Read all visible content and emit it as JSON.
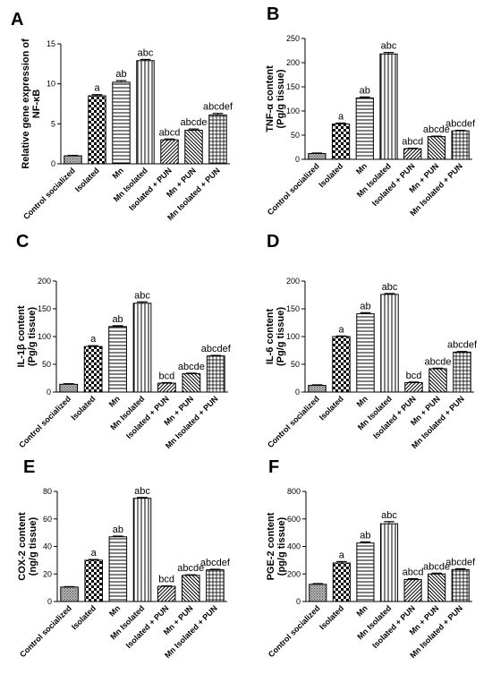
{
  "chart_data": [
    {
      "type": "bar",
      "panel": "A",
      "ylabel_lines": [
        "Relative gene expression of",
        "NF-κB"
      ],
      "categories": [
        "Control socialized",
        "Isolated",
        "Mn",
        "Mn Isolated",
        "Isolated + PUN",
        "Mn + PUN",
        "Mn Isolated + PUN"
      ],
      "values": [
        1.0,
        8.5,
        10.2,
        12.9,
        3.0,
        4.2,
        6.1
      ],
      "errors": [
        0.05,
        0.15,
        0.2,
        0.15,
        0.1,
        0.15,
        0.2
      ],
      "significance": [
        "",
        "a",
        "ab",
        "abc",
        "abcd",
        "abcde",
        "abcdef"
      ],
      "ylim": [
        0,
        15
      ],
      "yticks": [
        0,
        5,
        10,
        15
      ]
    },
    {
      "type": "bar",
      "panel": "B",
      "ylabel_lines": [
        "TNF-α content",
        "(Pg/g tissue)"
      ],
      "categories": [
        "Control socialized",
        "Isolated",
        "Mn",
        "Mn Isolated",
        "Isolated + PUN",
        "Mn + PUN",
        "Mn Isolated + PUN"
      ],
      "values": [
        12,
        73,
        127,
        218,
        22,
        47,
        59
      ],
      "errors": [
        1,
        2,
        2,
        3,
        1,
        1,
        1
      ],
      "significance": [
        "",
        "a",
        "ab",
        "abc",
        "abcd",
        "abcde",
        "abcdef"
      ],
      "ylim": [
        0,
        250
      ],
      "yticks": [
        0,
        50,
        100,
        150,
        200,
        250
      ]
    },
    {
      "type": "bar",
      "panel": "C",
      "ylabel_lines": [
        "IL-1β content",
        "(Pg/g tissue)"
      ],
      "categories": [
        "Control socialized",
        "Isolated",
        "Mn",
        "Mn Isolated",
        "Isolated + PUN",
        "Mn + PUN",
        "Mn Isolated + PUN"
      ],
      "values": [
        14,
        82,
        118,
        160,
        16,
        33,
        65
      ],
      "errors": [
        1,
        1.5,
        1.5,
        2.5,
        1,
        1,
        1
      ],
      "significance": [
        "",
        "a",
        "ab",
        "abc",
        "bcd",
        "abcde",
        "abcdef"
      ],
      "ylim": [
        0,
        200
      ],
      "yticks": [
        0,
        50,
        100,
        150,
        200
      ]
    },
    {
      "type": "bar",
      "panel": "D",
      "ylabel_lines": [
        "IL-6 content",
        "(Pg/g tissue)"
      ],
      "categories": [
        "Control socialized",
        "Isolated",
        "Mn",
        "Mn Isolated",
        "Isolated + PUN",
        "Mn + PUN",
        "Mn Isolated + PUN"
      ],
      "values": [
        12,
        100,
        141,
        176,
        17,
        42,
        72
      ],
      "errors": [
        1,
        1,
        2,
        1.5,
        1,
        1,
        1
      ],
      "significance": [
        "",
        "a",
        "ab",
        "abc",
        "bcd",
        "abcde",
        "abcdef"
      ],
      "ylim": [
        0,
        200
      ],
      "yticks": [
        0,
        50,
        100,
        150,
        200
      ]
    },
    {
      "type": "bar",
      "panel": "E",
      "ylabel_lines": [
        "COX-2 content",
        "(ng/g tissue)"
      ],
      "categories": [
        "Control socialized",
        "Isolated",
        "Mn",
        "Mn Isolated",
        "Isolated + PUN",
        "Mn + PUN",
        "Mn Isolated + PUN"
      ],
      "values": [
        10.5,
        30,
        47,
        75,
        11,
        19,
        23
      ],
      "errors": [
        0.3,
        0.5,
        0.5,
        0.6,
        0.3,
        0.4,
        0.4
      ],
      "significance": [
        "",
        "a",
        "ab",
        "abc",
        "bcd",
        "abcde",
        "abcdef"
      ],
      "ylim": [
        0,
        80
      ],
      "yticks": [
        0,
        20,
        40,
        60,
        80
      ]
    },
    {
      "type": "bar",
      "panel": "F",
      "ylabel_lines": [
        "PGE-2 content",
        "(pg/g tissue)"
      ],
      "categories": [
        "Control socialized",
        "Isolated",
        "Mn",
        "Mn Isolated",
        "Isolated + PUN",
        "Mn + PUN",
        "Mn Isolated + PUN"
      ],
      "values": [
        125,
        280,
        425,
        565,
        160,
        200,
        232
      ],
      "errors": [
        5,
        10,
        8,
        15,
        6,
        6,
        6
      ],
      "significance": [
        "",
        "a",
        "ab",
        "abc",
        "abcd",
        "abcde",
        "abcdef"
      ],
      "ylim": [
        0,
        800
      ],
      "yticks": [
        0,
        200,
        400,
        600,
        800
      ]
    }
  ],
  "bar_patterns": [
    "dots-grey",
    "checker",
    "h-lines",
    "v-lines",
    "diag-right",
    "diag-left",
    "grid"
  ]
}
